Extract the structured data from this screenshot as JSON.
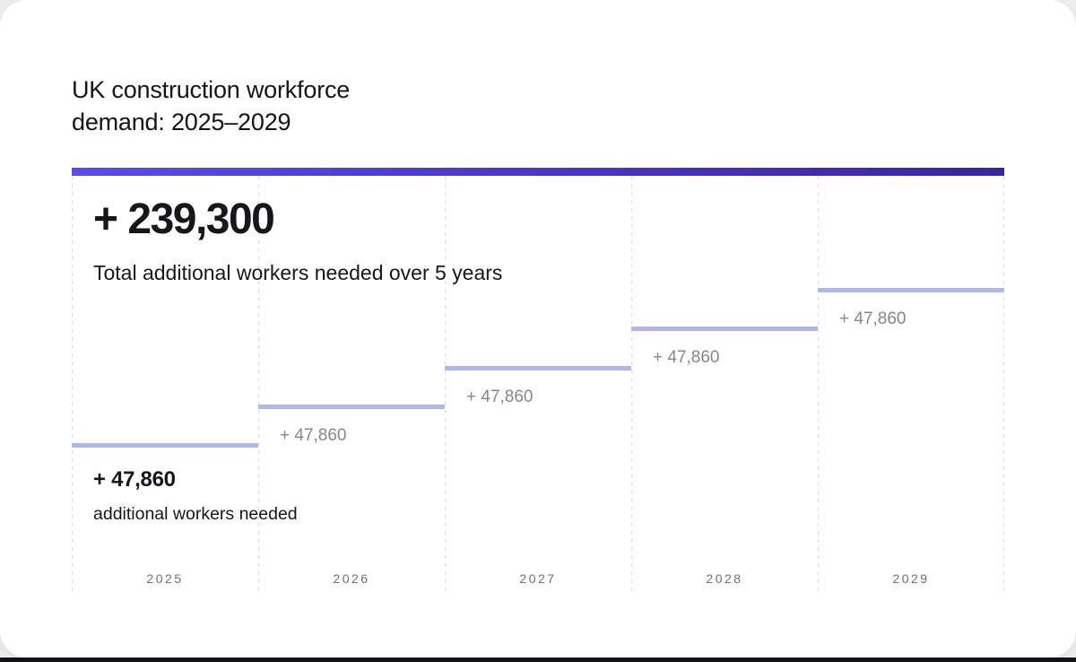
{
  "title": {
    "line1": "UK construction workforce",
    "line2": "demand: 2025–2029"
  },
  "headline": {
    "value": "+ 239,300",
    "caption": "Total additional workers needed over 5 years"
  },
  "first_year_annotation": {
    "value": "+ 47,860",
    "caption": "additional workers needed"
  },
  "years": [
    {
      "year": "2025",
      "increment_label": "+ 47,860",
      "label_style": "emphasized"
    },
    {
      "year": "2026",
      "increment_label": "+ 47,860",
      "label_style": "muted"
    },
    {
      "year": "2027",
      "increment_label": "+ 47,860",
      "label_style": "muted"
    },
    {
      "year": "2028",
      "increment_label": "+ 47,860",
      "label_style": "muted"
    },
    {
      "year": "2029",
      "increment_label": "+ 47,860",
      "label_style": "muted"
    }
  ],
  "colors": {
    "accent_bar_gradient_start": "#5a4af0",
    "accent_bar_gradient_end": "#3b23a8",
    "step_line": "#b0b6f1",
    "muted_label": "#86868f",
    "year_label": "#6e6e79",
    "dashed_grid": "#dcdce0",
    "card_background": "#ffffff",
    "page_background": "#efefef",
    "bottom_strip": "#141417",
    "text_primary": "#17171b"
  },
  "chart_data": {
    "type": "step",
    "title": "UK construction workforce demand: 2025–2029",
    "categories": [
      "2025",
      "2026",
      "2027",
      "2028",
      "2029"
    ],
    "series": [
      {
        "name": "additional workers needed",
        "values": [
          47860,
          47860,
          47860,
          47860,
          47860
        ]
      }
    ],
    "cumulative_values": [
      47860,
      95720,
      143580,
      191440,
      239300
    ],
    "total": 239300,
    "total_label": "+ 239,300",
    "total_caption": "Total additional workers needed over 5 years",
    "xlabel": "",
    "ylabel": "",
    "grid": "vertical-dashed",
    "legend_position": "none",
    "annotations": [
      "+ 47,860 additional workers needed (shown under 2025 step)",
      "+ 47,860 labels under each subsequent step"
    ]
  }
}
